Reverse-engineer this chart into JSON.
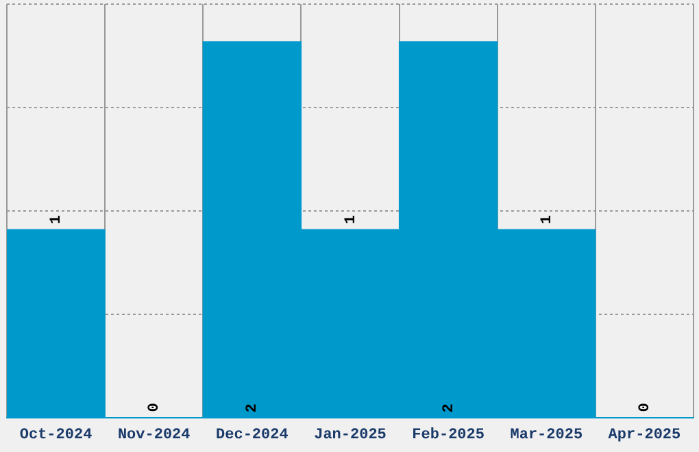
{
  "chart_data": {
    "type": "bar",
    "categories": [
      "Oct-2024",
      "Nov-2024",
      "Dec-2024",
      "Jan-2025",
      "Feb-2025",
      "Mar-2025",
      "Apr-2025"
    ],
    "values": [
      1,
      0,
      2,
      1,
      2,
      1,
      0
    ],
    "color": "#0099cc",
    "ylim": [
      0,
      2.2
    ],
    "yticks": [
      {
        "value": 0,
        "label": null
      },
      {
        "value": 0.55,
        "label": null
      },
      {
        "value": 1.1,
        "label": null
      },
      {
        "value": 1.65,
        "label": null
      },
      {
        "value": 2.2,
        "label": null
      }
    ],
    "tick_labels": "x",
    "grid": true,
    "data_labels": true
  }
}
